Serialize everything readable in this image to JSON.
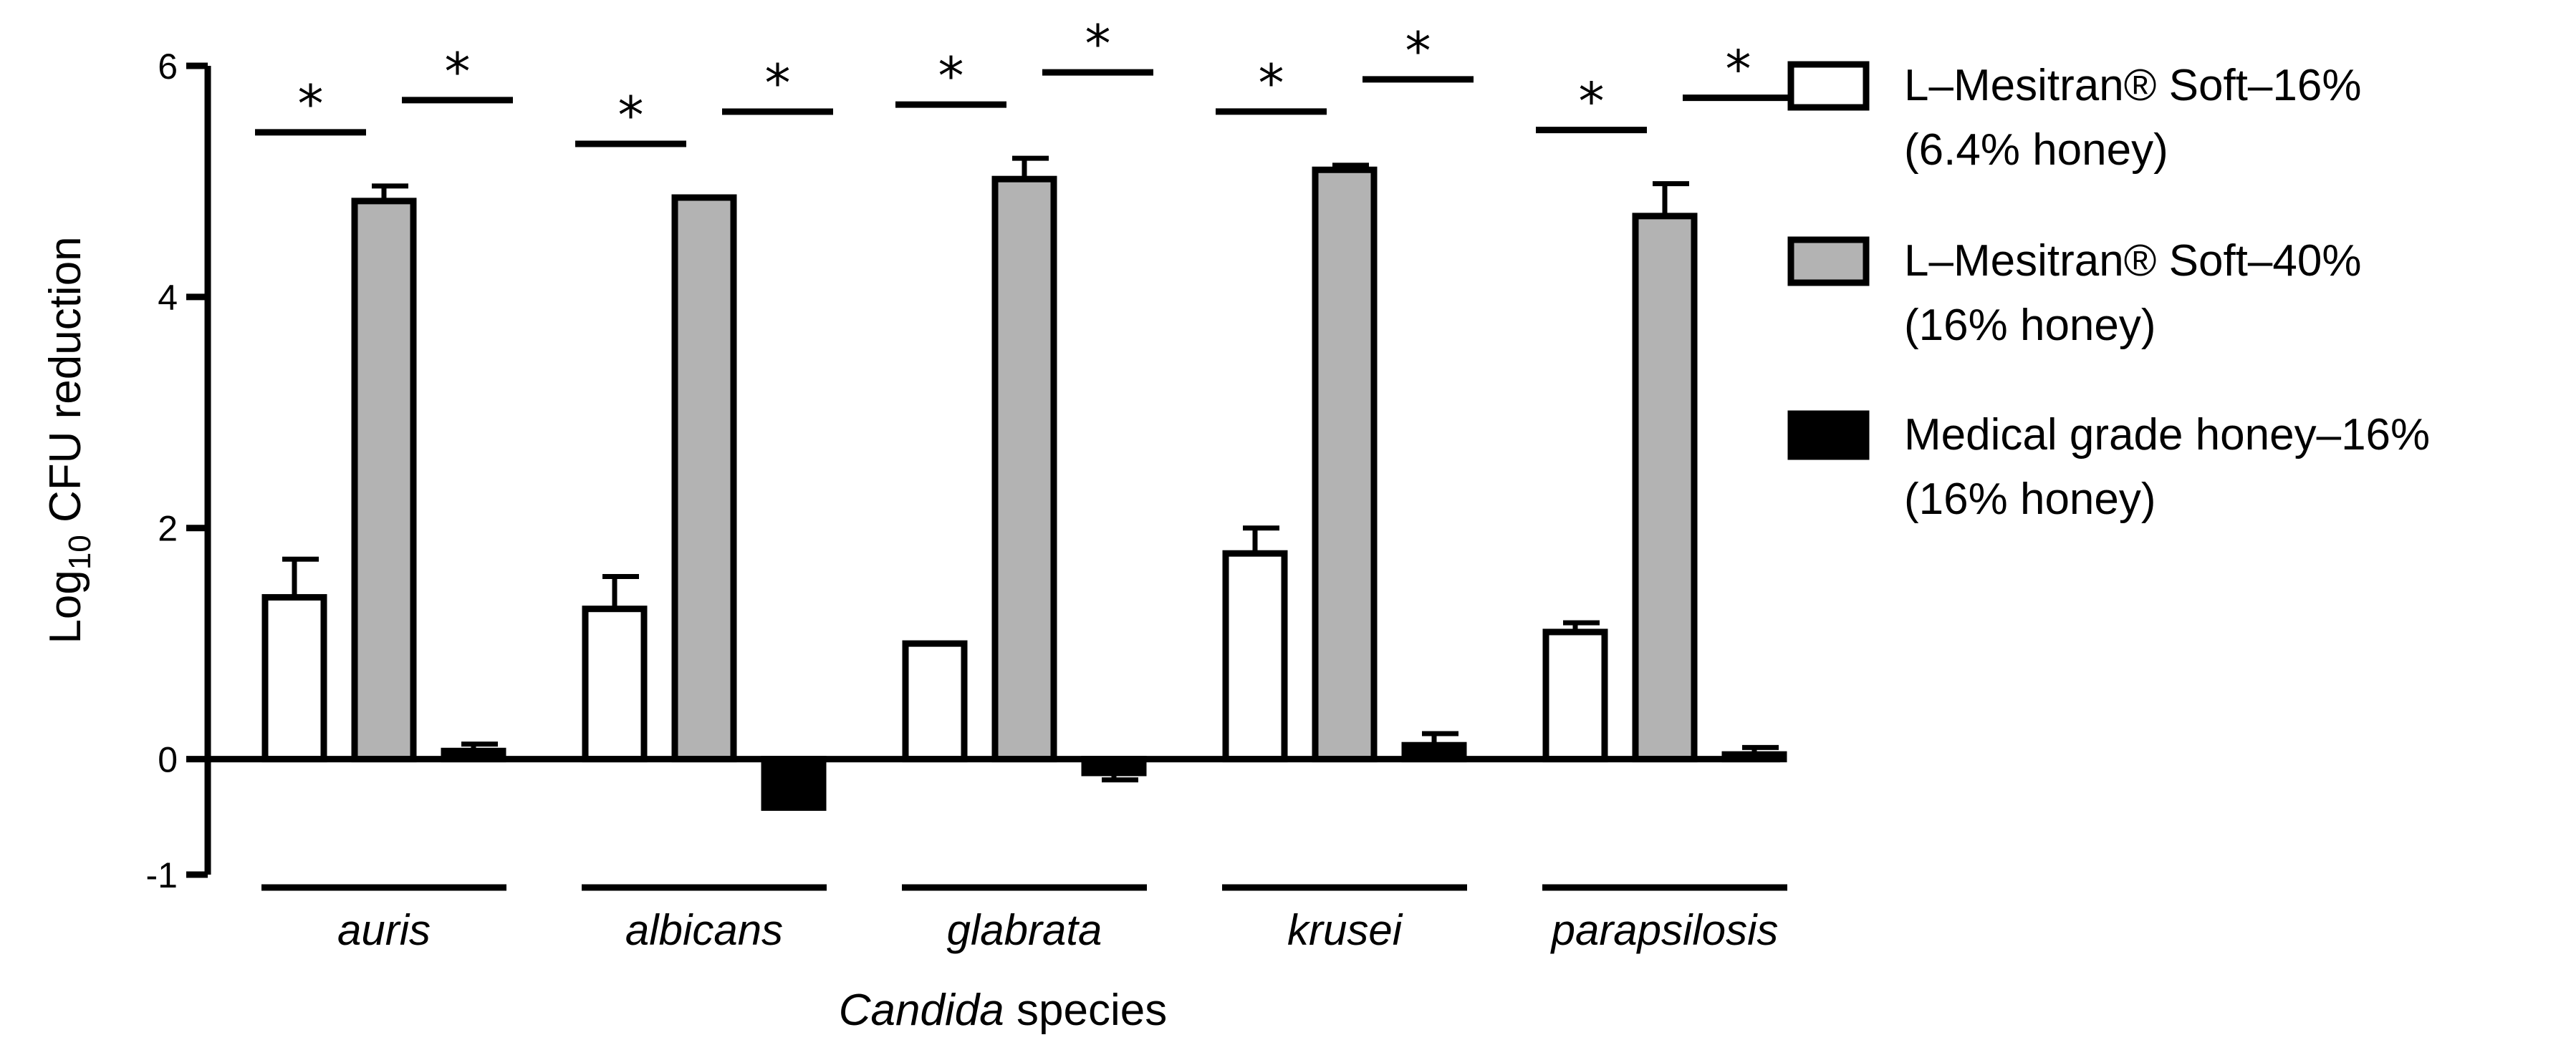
{
  "chart_data": {
    "type": "bar",
    "title": "",
    "categories": [
      "auris",
      "albicans",
      "glabrata",
      "krusei",
      "parapsilosis"
    ],
    "series": [
      {
        "name": "L–Mesitran® Soft–16%",
        "subname": "(6.4% honey)",
        "color": "#ffffff",
        "values": [
          1.4,
          1.3,
          1.0,
          1.78,
          1.1
        ],
        "errors": [
          0.33,
          0.28,
          0.0,
          0.22,
          0.08
        ]
      },
      {
        "name": "L–Mesitran® Soft–40%",
        "subname": "(16% honey)",
        "color": "#b3b3b3",
        "values": [
          4.83,
          4.86,
          5.02,
          5.1,
          4.7
        ],
        "errors": [
          0.13,
          0.0,
          0.18,
          0.04,
          0.28
        ]
      },
      {
        "name": "Medical grade honey–16%",
        "subname": "(16% honey)",
        "color": "#000000",
        "values": [
          0.07,
          -0.42,
          -0.12,
          0.12,
          0.04
        ],
        "errors": [
          0.06,
          0.0,
          0.06,
          0.1,
          0.06
        ]
      }
    ],
    "significance_marker": "*",
    "ylim": [
      -1,
      6
    ],
    "yticks": [
      -1,
      0,
      2,
      4,
      6
    ],
    "ylabel": {
      "prefix": "Log",
      "sub": "10",
      "suffix": " CFU reduction"
    },
    "xlabel": {
      "italic": "Candida",
      "rest": " species"
    },
    "legend_position": "right"
  }
}
